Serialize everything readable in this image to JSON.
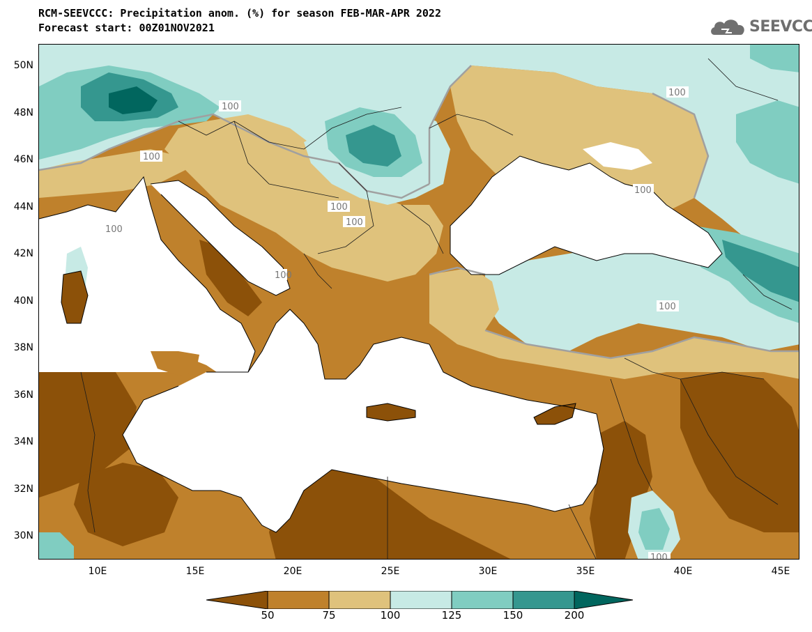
{
  "header": {
    "title_line1": "RCM-SEEVCCC: Precipitation anom. (%) for season FEB-MAR-APR 2022",
    "title_line2": "Forecast start: 00Z01NOV2021",
    "logo_text": "SEEVCCC"
  },
  "map": {
    "variable": "Precipitation anomaly (%)",
    "season": "FEB-MAR-APR 2022",
    "lat_range": [
      29,
      51
    ],
    "lon_range": [
      7,
      46
    ],
    "lat_labels": [
      "50N",
      "48N",
      "46N",
      "44N",
      "42N",
      "40N",
      "38N",
      "36N",
      "34N",
      "32N",
      "30N"
    ],
    "lon_labels": [
      "10E",
      "15E",
      "20E",
      "25E",
      "30E",
      "35E",
      "40E",
      "45E"
    ],
    "contour_labels": [
      "100",
      "100",
      "100",
      "100",
      "100",
      "100",
      "100",
      "100",
      "100",
      "100"
    ]
  },
  "legend": {
    "labels": [
      "50",
      "75",
      "100",
      "125",
      "150",
      "200"
    ],
    "colors": [
      "#8c5109",
      "#bf812c",
      "#dfc27c",
      "#c7eae5",
      "#80cdc1",
      "#35978f",
      "#01665e"
    ]
  }
}
